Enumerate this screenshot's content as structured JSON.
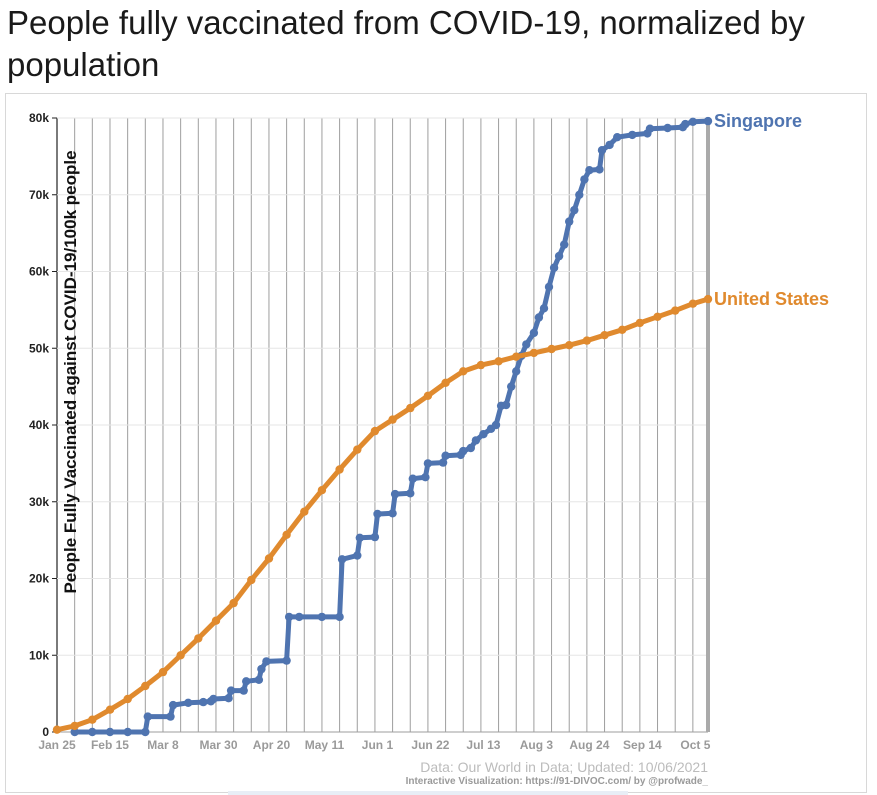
{
  "page": {
    "title": "People fully vaccinated from COVID-19, normalized by population"
  },
  "chart_data": {
    "type": "line",
    "title": "People fully vaccinated from COVID-19, normalized by population",
    "ylabel": "People Fully Vaccinated against COVID-19/100k people",
    "xlabel": "",
    "x_range": [
      "2021-01-25",
      "2021-10-10"
    ],
    "ylim": [
      0,
      80000
    ],
    "y_ticks": [
      0,
      10000,
      20000,
      30000,
      40000,
      50000,
      60000,
      70000,
      80000
    ],
    "y_tick_labels": [
      "0",
      "10k",
      "20k",
      "30k",
      "40k",
      "50k",
      "60k",
      "70k",
      "80k"
    ],
    "x_tick_labels": [
      {
        "date": "2021-01-25",
        "label": "Jan 25"
      },
      {
        "date": "2021-02-15",
        "label": "Feb 15"
      },
      {
        "date": "2021-03-08",
        "label": "Mar 8"
      },
      {
        "date": "2021-03-30",
        "label": "Mar 30"
      },
      {
        "date": "2021-04-20",
        "label": "Apr 20"
      },
      {
        "date": "2021-05-11",
        "label": "May 11"
      },
      {
        "date": "2021-06-01",
        "label": "Jun 1"
      },
      {
        "date": "2021-06-22",
        "label": "Jun 22"
      },
      {
        "date": "2021-07-13",
        "label": "Jul 13"
      },
      {
        "date": "2021-08-03",
        "label": "Aug 3"
      },
      {
        "date": "2021-08-24",
        "label": "Aug 24"
      },
      {
        "date": "2021-09-14",
        "label": "Sep 14"
      },
      {
        "date": "2021-10-05",
        "label": "Oct 5"
      }
    ],
    "gridlines": "weekly vertical lines",
    "series": [
      {
        "name": "Singapore",
        "color": "#4f74b0",
        "points": [
          [
            "2021-02-01",
            0
          ],
          [
            "2021-02-08",
            0
          ],
          [
            "2021-02-15",
            0
          ],
          [
            "2021-02-22",
            0
          ],
          [
            "2021-03-01",
            0
          ],
          [
            "2021-03-02",
            2000
          ],
          [
            "2021-03-11",
            2000
          ],
          [
            "2021-03-12",
            3500
          ],
          [
            "2021-03-18",
            3800
          ],
          [
            "2021-03-24",
            3900
          ],
          [
            "2021-03-27",
            4000
          ],
          [
            "2021-03-28",
            4300
          ],
          [
            "2021-04-03",
            4400
          ],
          [
            "2021-04-04",
            5400
          ],
          [
            "2021-04-09",
            5400
          ],
          [
            "2021-04-10",
            6600
          ],
          [
            "2021-04-15",
            6800
          ],
          [
            "2021-04-16",
            8200
          ],
          [
            "2021-04-18",
            9200
          ],
          [
            "2021-04-26",
            9300
          ],
          [
            "2021-04-27",
            15000
          ],
          [
            "2021-05-01",
            15000
          ],
          [
            "2021-05-10",
            15000
          ],
          [
            "2021-05-17",
            15000
          ],
          [
            "2021-05-18",
            22500
          ],
          [
            "2021-05-24",
            23000
          ],
          [
            "2021-05-25",
            25300
          ],
          [
            "2021-05-31",
            25400
          ],
          [
            "2021-06-01",
            28400
          ],
          [
            "2021-06-07",
            28500
          ],
          [
            "2021-06-08",
            31000
          ],
          [
            "2021-06-14",
            31100
          ],
          [
            "2021-06-15",
            33000
          ],
          [
            "2021-06-20",
            33200
          ],
          [
            "2021-06-21",
            35000
          ],
          [
            "2021-06-27",
            35100
          ],
          [
            "2021-06-28",
            36000
          ],
          [
            "2021-07-04",
            36100
          ],
          [
            "2021-07-05",
            36600
          ],
          [
            "2021-07-08",
            37000
          ],
          [
            "2021-07-10",
            38000
          ],
          [
            "2021-07-13",
            38800
          ],
          [
            "2021-07-16",
            39500
          ],
          [
            "2021-07-18",
            40000
          ],
          [
            "2021-07-20",
            42500
          ],
          [
            "2021-07-22",
            42600
          ],
          [
            "2021-07-24",
            45000
          ],
          [
            "2021-07-26",
            47000
          ],
          [
            "2021-07-28",
            49000
          ],
          [
            "2021-07-30",
            50500
          ],
          [
            "2021-08-02",
            52000
          ],
          [
            "2021-08-04",
            54000
          ],
          [
            "2021-08-06",
            55200
          ],
          [
            "2021-08-08",
            58000
          ],
          [
            "2021-08-10",
            60500
          ],
          [
            "2021-08-12",
            62000
          ],
          [
            "2021-08-14",
            63500
          ],
          [
            "2021-08-16",
            66500
          ],
          [
            "2021-08-18",
            68000
          ],
          [
            "2021-08-20",
            70000
          ],
          [
            "2021-08-22",
            72000
          ],
          [
            "2021-08-24",
            73200
          ],
          [
            "2021-08-28",
            73300
          ],
          [
            "2021-08-29",
            75800
          ],
          [
            "2021-09-01",
            76500
          ],
          [
            "2021-09-04",
            77500
          ],
          [
            "2021-09-10",
            77800
          ],
          [
            "2021-09-16",
            78000
          ],
          [
            "2021-09-17",
            78600
          ],
          [
            "2021-09-24",
            78700
          ],
          [
            "2021-09-30",
            78800
          ],
          [
            "2021-10-01",
            79200
          ],
          [
            "2021-10-04",
            79500
          ],
          [
            "2021-10-10",
            79600
          ]
        ]
      },
      {
        "name": "United States",
        "color": "#e08a2e",
        "points": [
          [
            "2021-01-25",
            300
          ],
          [
            "2021-02-01",
            800
          ],
          [
            "2021-02-08",
            1600
          ],
          [
            "2021-02-15",
            2900
          ],
          [
            "2021-02-22",
            4300
          ],
          [
            "2021-03-01",
            6000
          ],
          [
            "2021-03-08",
            7800
          ],
          [
            "2021-03-15",
            10000
          ],
          [
            "2021-03-22",
            12200
          ],
          [
            "2021-03-29",
            14500
          ],
          [
            "2021-04-05",
            16800
          ],
          [
            "2021-04-12",
            19800
          ],
          [
            "2021-04-19",
            22600
          ],
          [
            "2021-04-26",
            25700
          ],
          [
            "2021-05-03",
            28700
          ],
          [
            "2021-05-10",
            31500
          ],
          [
            "2021-05-17",
            34200
          ],
          [
            "2021-05-24",
            36800
          ],
          [
            "2021-05-31",
            39200
          ],
          [
            "2021-06-07",
            40700
          ],
          [
            "2021-06-14",
            42200
          ],
          [
            "2021-06-21",
            43800
          ],
          [
            "2021-06-28",
            45500
          ],
          [
            "2021-07-05",
            47000
          ],
          [
            "2021-07-12",
            47800
          ],
          [
            "2021-07-19",
            48300
          ],
          [
            "2021-07-26",
            48900
          ],
          [
            "2021-08-02",
            49400
          ],
          [
            "2021-08-09",
            49900
          ],
          [
            "2021-08-16",
            50400
          ],
          [
            "2021-08-23",
            51000
          ],
          [
            "2021-08-30",
            51700
          ],
          [
            "2021-09-06",
            52400
          ],
          [
            "2021-09-13",
            53300
          ],
          [
            "2021-09-20",
            54100
          ],
          [
            "2021-09-27",
            54900
          ],
          [
            "2021-10-04",
            55800
          ],
          [
            "2021-10-10",
            56400
          ]
        ]
      }
    ],
    "annotations": {
      "source": "Data: Our World in Data; Updated: 10/06/2021",
      "credit": "Interactive Visualization: https://91-DIVOC.com/ by @profwade_"
    }
  }
}
